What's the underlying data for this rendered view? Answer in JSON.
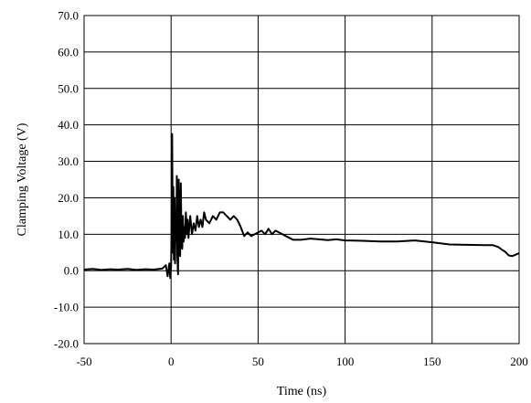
{
  "chart_data": {
    "type": "line",
    "title": "",
    "xlabel": "Time (ns)",
    "ylabel": "Clamping Voltage (V)",
    "xlim": [
      -50,
      200
    ],
    "ylim": [
      -20,
      70
    ],
    "x_ticks": [
      -50,
      0,
      50,
      100,
      150,
      200
    ],
    "x_tick_labels": [
      "-50",
      "0",
      "50",
      "100",
      "150",
      "200"
    ],
    "y_ticks": [
      -20,
      -10,
      0,
      10,
      20,
      30,
      40,
      50,
      60,
      70
    ],
    "y_tick_labels": [
      "-20.0",
      "-10.0",
      "0.0",
      "10.0",
      "20.0",
      "30.0",
      "40.0",
      "50.0",
      "60.0",
      "70.0"
    ],
    "grid": true,
    "legend": "none",
    "line_color": "#000000",
    "series": [
      {
        "x": [
          -50,
          -45,
          -40,
          -35,
          -30,
          -25,
          -20,
          -15,
          -10,
          -5,
          -3,
          -2,
          -1,
          -0.5,
          0,
          0.3,
          0.6,
          1,
          1.3,
          1.6,
          2,
          2.3,
          2.6,
          3,
          3.3,
          3.6,
          4,
          4.4,
          4.8,
          5.2,
          5.6,
          6,
          6.4,
          6.8,
          7.2,
          7.6,
          8,
          8.5,
          9,
          9.5,
          10,
          11,
          12,
          13,
          14,
          15,
          16,
          17,
          18,
          19,
          20,
          22,
          24,
          26,
          28,
          30,
          32,
          34,
          36,
          38,
          40,
          42,
          44,
          46,
          48,
          50,
          52,
          54,
          56,
          58,
          60,
          62,
          64,
          66,
          68,
          70,
          75,
          80,
          85,
          90,
          95,
          100,
          110,
          120,
          130,
          140,
          150,
          160,
          170,
          180,
          185,
          188,
          190,
          192,
          194,
          196,
          198,
          200
        ],
        "y": [
          0.3,
          0.5,
          0.2,
          0.4,
          0.3,
          0.5,
          0.2,
          0.4,
          0.3,
          0.6,
          1.5,
          -1.5,
          2.0,
          -2.0,
          1.0,
          12,
          37.5,
          5,
          23,
          3,
          20,
          2,
          15,
          8,
          26,
          4,
          -1,
          25,
          10,
          4,
          24,
          7,
          6,
          15,
          8,
          12,
          9,
          16,
          10,
          14,
          9,
          15,
          10,
          13,
          11,
          15,
          12,
          14,
          12,
          16,
          14,
          13,
          15,
          14,
          16,
          16,
          15,
          14,
          15,
          14,
          12,
          9.5,
          10.5,
          9.5,
          10,
          10.5,
          11,
          10,
          11.5,
          10,
          11,
          10.5,
          10,
          9.5,
          9,
          8.5,
          8.5,
          8.8,
          8.6,
          8.4,
          8.6,
          8.3,
          8.2,
          8.0,
          8.0,
          8.3,
          7.8,
          7.2,
          7.1,
          7.0,
          7.0,
          6.5,
          5.8,
          5.2,
          4.2,
          4.0,
          4.4,
          4.8
        ]
      }
    ]
  }
}
